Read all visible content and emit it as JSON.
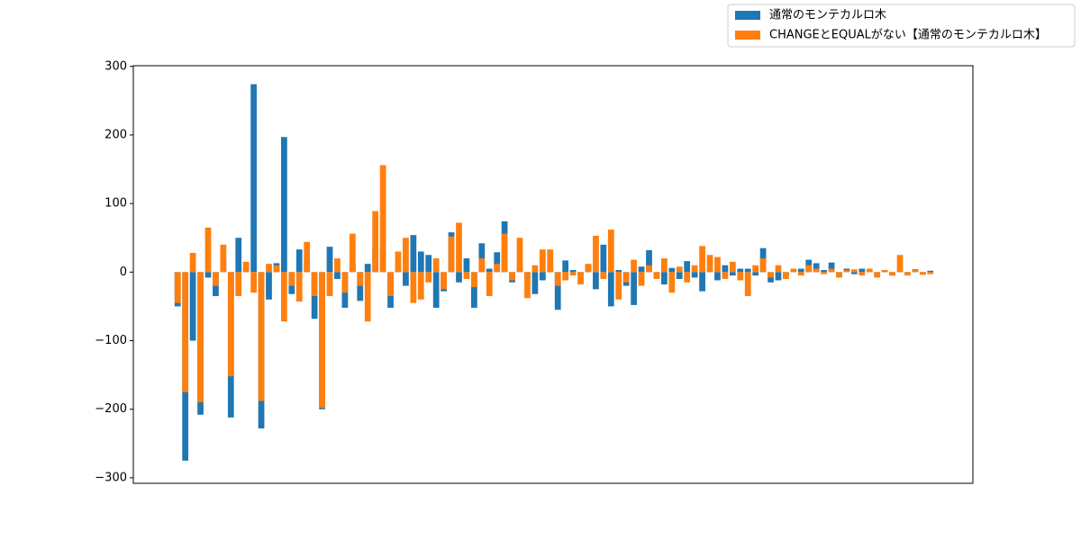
{
  "chart_data": {
    "type": "bar",
    "categories": [
      null,
      null,
      null,
      null,
      null,
      null,
      null,
      null,
      null,
      null,
      null,
      null,
      null,
      null,
      null,
      null,
      null,
      null,
      null,
      null,
      null,
      null,
      null,
      null,
      null,
      null,
      null,
      null,
      null,
      null,
      null,
      null,
      null,
      null,
      null,
      null,
      null,
      null,
      null,
      null,
      null,
      null,
      null,
      null,
      null,
      null,
      null,
      null,
      null,
      null,
      null,
      null,
      null,
      null,
      null,
      null,
      null,
      null,
      null,
      null,
      null,
      null,
      null,
      null,
      null,
      null,
      null,
      null,
      null,
      null,
      null,
      null,
      null,
      null,
      null,
      null,
      null,
      null,
      null,
      null,
      null,
      null,
      null,
      null,
      null,
      null,
      null,
      null,
      null,
      null,
      null,
      null,
      null,
      null,
      null,
      null,
      null,
      null,
      null,
      null
    ],
    "series": [
      {
        "name": "通常のモンテカルロ木",
        "color": "#1f77b4",
        "values": [
          -50,
          -275,
          -100,
          -208,
          -8,
          -35,
          20,
          -212,
          50,
          8,
          274,
          -228,
          -40,
          13,
          197,
          -32,
          33,
          15,
          -68,
          -200,
          37,
          -10,
          -52,
          12,
          -42,
          12,
          35,
          33,
          -52,
          5,
          -20,
          54,
          30,
          25,
          -52,
          -28,
          58,
          -15,
          20,
          -52,
          42,
          5,
          29,
          74,
          -15,
          10,
          -8,
          -32,
          -12,
          5,
          -55,
          17,
          3,
          -5,
          10,
          -25,
          40,
          -50,
          3,
          -20,
          -48,
          8,
          32,
          -5,
          -18,
          6,
          -10,
          16,
          -8,
          -28,
          5,
          -12,
          10,
          -5,
          5,
          5,
          -5,
          35,
          -15,
          -12,
          -5,
          3,
          5,
          18,
          13,
          3,
          14,
          -5,
          5,
          -3,
          5,
          2,
          -4,
          3,
          -5,
          2,
          -3,
          4,
          -3,
          2
        ]
      },
      {
        "name": "CHANGEとEQUALがない【通常のモンテカルロ木】",
        "color": "#ff7f0e",
        "values": [
          -45,
          -175,
          28,
          -190,
          65,
          -20,
          40,
          -152,
          -35,
          15,
          -30,
          -188,
          12,
          10,
          -72,
          -20,
          -43,
          44,
          -35,
          -198,
          -35,
          20,
          -30,
          56,
          -20,
          -72,
          89,
          156,
          -35,
          30,
          50,
          -45,
          -40,
          -15,
          20,
          -25,
          52,
          72,
          -10,
          -22,
          20,
          -35,
          12,
          56,
          -12,
          50,
          -38,
          10,
          33,
          33,
          -20,
          -12,
          -5,
          -18,
          12,
          53,
          -10,
          62,
          -40,
          -15,
          18,
          -20,
          10,
          -10,
          20,
          -30,
          8,
          -15,
          10,
          38,
          25,
          22,
          -10,
          15,
          -12,
          -35,
          10,
          20,
          -8,
          10,
          -10,
          5,
          -5,
          10,
          5,
          -3,
          5,
          -8,
          3,
          4,
          -5,
          5,
          -8,
          3,
          -5,
          25,
          -5,
          3,
          -4,
          -3
        ]
      }
    ],
    "ylim": [
      -308,
      301
    ],
    "yticks": [
      {
        "value": -300,
        "label": "−300"
      },
      {
        "value": -200,
        "label": "−200"
      },
      {
        "value": -100,
        "label": "−100"
      },
      0,
      100,
      200,
      300
    ],
    "legend": "upper right"
  }
}
